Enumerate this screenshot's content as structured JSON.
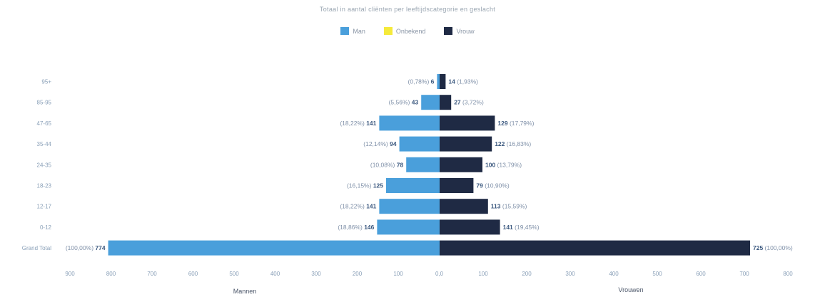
{
  "chart_data": {
    "type": "bar",
    "orientation": "horizontal-diverging",
    "title": "Totaal in aantal cliënten per leeftijdscategorie en geslacht",
    "categories": [
      "95+",
      "85-95",
      "47-65",
      "35-44",
      "24-35",
      "18-23",
      "12-17",
      "0-12",
      "Grand Total"
    ],
    "series": [
      {
        "name": "Man",
        "color": "#4a9fdb",
        "values": [
          6,
          43,
          141,
          94,
          78,
          125,
          141,
          146,
          774
        ],
        "percent_labels": [
          "(0,78%)",
          "(5,56%)",
          "(18,22%)",
          "(12,14%)",
          "(10,08%)",
          "(16,15%)",
          "(18,22%)",
          "(18,86%)",
          "(100,00%)"
        ]
      },
      {
        "name": "Onbekend",
        "color": "#f5ea3b",
        "values": [
          0,
          0,
          0,
          0,
          0,
          0,
          0,
          0,
          0
        ],
        "percent_labels": []
      },
      {
        "name": "Vrouw",
        "color": "#1f2a44",
        "values": [
          14,
          27,
          129,
          122,
          100,
          79,
          113,
          141,
          725
        ],
        "percent_labels": [
          "(1,93%)",
          "(3,72%)",
          "(17,79%)",
          "(16,83%)",
          "(13,79%)",
          "(10,90%)",
          "(15,59%)",
          "(19,45%)",
          "(100,00%)"
        ]
      }
    ],
    "x_ticks_left": [
      "900",
      "800",
      "700",
      "600",
      "500",
      "400",
      "300",
      "200",
      "100",
      "0,0"
    ],
    "x_ticks_right": [
      "0,0",
      "100",
      "200",
      "300",
      "400",
      "500",
      "600",
      "700",
      "800"
    ],
    "xlim": [
      -900,
      800
    ],
    "xlabel_left": "Mannen",
    "xlabel_right": "Vrouwen",
    "legend_position": "top-center",
    "grid": false
  }
}
